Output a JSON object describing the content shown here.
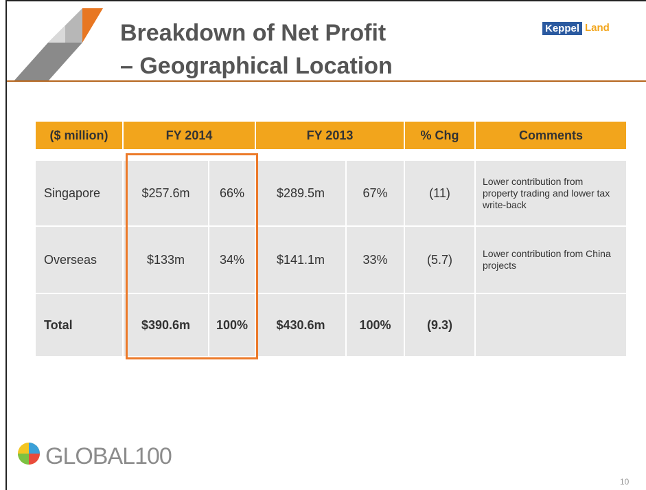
{
  "header": {
    "title_lines": [
      "Breakdown of Net Profit",
      "– Geographical Location"
    ],
    "logo": {
      "word1": "Keppel",
      "word2": "Land"
    }
  },
  "table": {
    "header": [
      "($ million)",
      "FY 2014",
      "FY 2013",
      "% Chg",
      "Comments"
    ],
    "rows": [
      [
        "Singapore",
        "$257.6m",
        "66%",
        "$289.5m",
        "67%",
        "(11)",
        "Lower contribution from property trading and lower tax write-back"
      ],
      [
        "Overseas",
        "$133m",
        "34%",
        "$141.1m",
        "33%",
        "(5.7)",
        "Lower contribution from China projects"
      ],
      [
        "Total",
        "$390.6m",
        "100%",
        "$430.6m",
        "100%",
        "(9.3)"
      ]
    ]
  },
  "footer": {
    "brand": "GLOBAL100",
    "page_number": "10"
  }
}
